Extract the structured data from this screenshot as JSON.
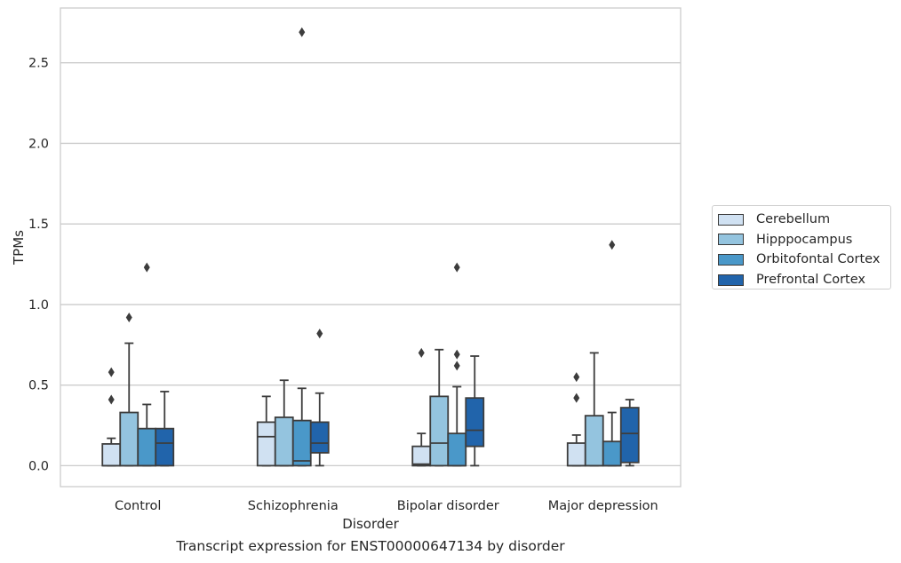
{
  "caption": "Transcript expression for ENST00000647134 by disorder",
  "chart_data": {
    "type": "box",
    "title": "",
    "xlabel": "Disorder",
    "ylabel": "TPMs",
    "ylim": [
      -0.13,
      2.84
    ],
    "yticks": [
      "0.0",
      "0.5",
      "1.0",
      "1.5",
      "2.0",
      "2.5"
    ],
    "grid": "horizontal",
    "legend_position": "right",
    "categories": [
      "Control",
      "Schizophrenia",
      "Bipolar disorder",
      "Major depression"
    ],
    "series": [
      {
        "name": "Cerebellum",
        "color": "#d0e1f2",
        "boxes": [
          {
            "whislo": 0.0,
            "q1": 0.0,
            "med": 0.0,
            "q3": 0.135,
            "whishi": 0.17,
            "fliers": [
              0.41,
              0.58
            ]
          },
          {
            "whislo": 0.0,
            "q1": 0.0,
            "med": 0.18,
            "q3": 0.27,
            "whishi": 0.43,
            "fliers": []
          },
          {
            "whislo": 0.0,
            "q1": 0.0,
            "med": 0.01,
            "q3": 0.12,
            "whishi": 0.2,
            "fliers": [
              0.7
            ]
          },
          {
            "whislo": 0.0,
            "q1": 0.0,
            "med": 0.0,
            "q3": 0.14,
            "whishi": 0.19,
            "fliers": [
              0.42,
              0.55
            ]
          }
        ]
      },
      {
        "name": "Hipppocampus",
        "color": "#94c4df",
        "boxes": [
          {
            "whislo": 0.0,
            "q1": 0.0,
            "med": 0.0,
            "q3": 0.33,
            "whishi": 0.76,
            "fliers": [
              0.92
            ]
          },
          {
            "whislo": 0.0,
            "q1": 0.0,
            "med": 0.0,
            "q3": 0.3,
            "whishi": 0.53,
            "fliers": []
          },
          {
            "whislo": 0.0,
            "q1": 0.0,
            "med": 0.14,
            "q3": 0.43,
            "whishi": 0.72,
            "fliers": []
          },
          {
            "whislo": 0.0,
            "q1": 0.0,
            "med": 0.0,
            "q3": 0.31,
            "whishi": 0.7,
            "fliers": []
          }
        ]
      },
      {
        "name": "Orbitofontal Cortex",
        "color": "#4a98c9",
        "boxes": [
          {
            "whislo": 0.0,
            "q1": 0.0,
            "med": 0.0,
            "q3": 0.23,
            "whishi": 0.38,
            "fliers": [
              1.23
            ]
          },
          {
            "whislo": 0.0,
            "q1": 0.0,
            "med": 0.03,
            "q3": 0.28,
            "whishi": 0.48,
            "fliers": [
              2.69
            ]
          },
          {
            "whislo": 0.0,
            "q1": 0.0,
            "med": 0.0,
            "q3": 0.2,
            "whishi": 0.49,
            "fliers": [
              0.62,
              0.69,
              1.23
            ]
          },
          {
            "whislo": 0.0,
            "q1": 0.0,
            "med": 0.0,
            "q3": 0.15,
            "whishi": 0.33,
            "fliers": [
              1.37
            ]
          }
        ]
      },
      {
        "name": "Prefrontal Cortex",
        "color": "#2164ab",
        "boxes": [
          {
            "whislo": 0.0,
            "q1": 0.0,
            "med": 0.14,
            "q3": 0.23,
            "whishi": 0.46,
            "fliers": []
          },
          {
            "whislo": 0.0,
            "q1": 0.08,
            "med": 0.14,
            "q3": 0.27,
            "whishi": 0.45,
            "fliers": [
              0.82
            ]
          },
          {
            "whislo": 0.0,
            "q1": 0.12,
            "med": 0.22,
            "q3": 0.42,
            "whishi": 0.68,
            "fliers": []
          },
          {
            "whislo": 0.0,
            "q1": 0.02,
            "med": 0.2,
            "q3": 0.36,
            "whishi": 0.41,
            "fliers": []
          }
        ]
      }
    ]
  }
}
